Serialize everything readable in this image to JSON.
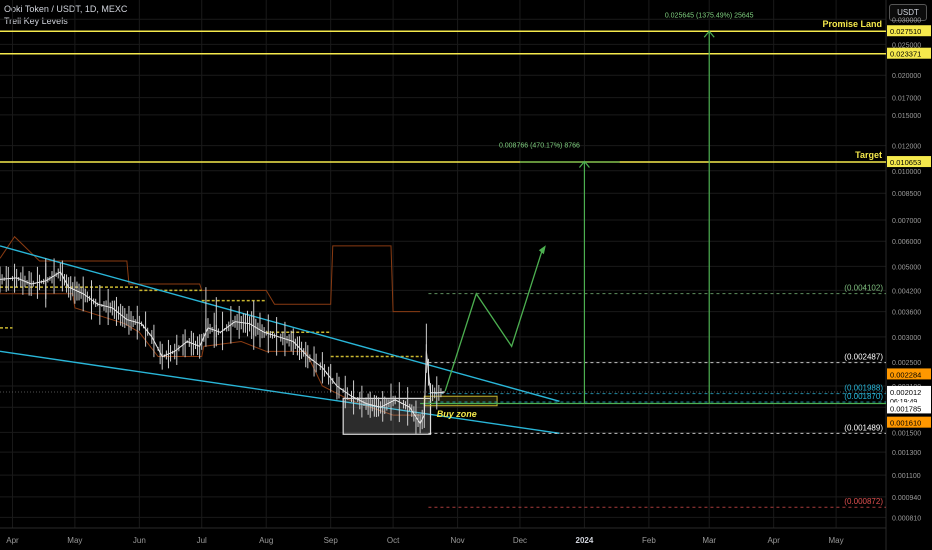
{
  "header": {
    "symbol_line": "Ooki Token / USDT, 1D, MEXC",
    "indicator": "Trell Key Levels",
    "currency_button": "USDT"
  },
  "colors": {
    "background": "#000000",
    "yellow": "#f5e94c",
    "green": "#4caf50",
    "cyan": "#29b6d8",
    "orange_channel": "#8a3b12",
    "grid": "#1a1a1a",
    "price_label": "#ff9800"
  },
  "chart_data": {
    "type": "line",
    "scale": "log",
    "ylim": [
      0.00075,
      0.0345
    ],
    "xlim": [
      "2023-03-26",
      "2024-05-25"
    ],
    "x_ticks": [
      {
        "date": "2023-04-01",
        "label": "Apr"
      },
      {
        "date": "2023-05-01",
        "label": "May"
      },
      {
        "date": "2023-06-01",
        "label": "Jun"
      },
      {
        "date": "2023-07-01",
        "label": "Jul"
      },
      {
        "date": "2023-08-01",
        "label": "Aug"
      },
      {
        "date": "2023-09-01",
        "label": "Sep"
      },
      {
        "date": "2023-10-01",
        "label": "Oct"
      },
      {
        "date": "2023-11-01",
        "label": "Nov"
      },
      {
        "date": "2023-12-01",
        "label": "Dec"
      },
      {
        "date": "2024-01-01",
        "label": "2024"
      },
      {
        "date": "2024-02-01",
        "label": "Feb"
      },
      {
        "date": "2024-03-01",
        "label": "Mar"
      },
      {
        "date": "2024-04-01",
        "label": "Apr"
      },
      {
        "date": "2024-05-01",
        "label": "May"
      }
    ],
    "y_ticks": [
      "0.030000",
      "0.025000",
      "0.020000",
      "0.017000",
      "0.015000",
      "0.012000",
      "0.010000",
      "0.008500",
      "0.007000",
      "0.006000",
      "0.005000",
      "0.004200",
      "0.003600",
      "0.003000",
      "0.002500",
      "0.002100",
      "0.001800",
      "0.001500",
      "0.001300",
      "0.001100",
      "0.000940",
      "0.000810"
    ],
    "price_series": [
      [
        "2023-03-26",
        0.00455
      ],
      [
        "2023-04-03",
        0.0046
      ],
      [
        "2023-04-10",
        0.0044
      ],
      [
        "2023-04-17",
        0.0045
      ],
      [
        "2023-04-24",
        0.0048
      ],
      [
        "2023-04-28",
        0.0043
      ],
      [
        "2023-05-05",
        0.0041
      ],
      [
        "2023-05-12",
        0.0038
      ],
      [
        "2023-05-19",
        0.0037
      ],
      [
        "2023-05-26",
        0.0034
      ],
      [
        "2023-06-02",
        0.0033
      ],
      [
        "2023-06-07",
        0.003
      ],
      [
        "2023-06-12",
        0.0026
      ],
      [
        "2023-06-18",
        0.0027
      ],
      [
        "2023-06-24",
        0.0029
      ],
      [
        "2023-06-30",
        0.0028
      ],
      [
        "2023-07-04",
        0.0032
      ],
      [
        "2023-07-10",
        0.0031
      ],
      [
        "2023-07-17",
        0.00335
      ],
      [
        "2023-07-24",
        0.0033
      ],
      [
        "2023-07-31",
        0.0031
      ],
      [
        "2023-08-07",
        0.003
      ],
      [
        "2023-08-14",
        0.0029
      ],
      [
        "2023-08-21",
        0.0026
      ],
      [
        "2023-08-28",
        0.0024
      ],
      [
        "2023-09-04",
        0.0021
      ],
      [
        "2023-09-11",
        0.00195
      ],
      [
        "2023-09-18",
        0.00185
      ],
      [
        "2023-09-25",
        0.0018
      ],
      [
        "2023-10-02",
        0.0019
      ],
      [
        "2023-10-09",
        0.0018
      ],
      [
        "2023-10-14",
        0.0016
      ],
      [
        "2023-10-16",
        0.0017
      ],
      [
        "2023-10-17",
        0.0027
      ],
      [
        "2023-10-19",
        0.002
      ],
      [
        "2023-10-23",
        0.002
      ],
      [
        "2023-10-26",
        0.00201
      ]
    ],
    "horizontal_levels": [
      {
        "value": 0.02751,
        "label": "0.027510",
        "name": "Promise Land"
      },
      {
        "value": 0.023371,
        "label": "0.023371",
        "name": ""
      },
      {
        "value": 0.010653,
        "label": "0.010653",
        "name": "Target"
      }
    ],
    "fib_levels": [
      {
        "value": 0.004102,
        "label": "(0.004102)",
        "color": "#7fbf7f"
      },
      {
        "value": 0.002487,
        "label": "(0.002487)",
        "color": "#ffffff"
      },
      {
        "value": 0.001988,
        "label": "(0.001988)",
        "color": "#29b6d8"
      },
      {
        "value": 0.00187,
        "label": "(0.001870)",
        "color": "#29b6d8"
      },
      {
        "value": 0.001489,
        "label": "(0.001489)",
        "color": "#ffffff"
      },
      {
        "value": 0.000872,
        "label": "(0.000872)",
        "color": "#e05050"
      }
    ],
    "price_tags": [
      {
        "value": 0.002284,
        "label": "0.002284",
        "bg": "#ff9800",
        "fg": "#000000"
      },
      {
        "value": 0.002012,
        "label": "0.002012",
        "bg": "#ffffff",
        "fg": "#000000",
        "sub": "06:19:49"
      },
      {
        "value": 0.001785,
        "label": "0.001785",
        "bg": "#ffffff",
        "fg": "#000000"
      },
      {
        "value": 0.00161,
        "label": "0.001610",
        "bg": "#ff9800",
        "fg": "#000000"
      }
    ],
    "annotations": [
      {
        "text": "0.025645 (1375.49%) 25645",
        "date": "2024-03-01",
        "value": 0.0275
      },
      {
        "text": "0.008766 (470.17%) 8766",
        "date": "2024-01-01",
        "value": 0.0107
      }
    ],
    "buy_zone_label": "Buy zone"
  }
}
